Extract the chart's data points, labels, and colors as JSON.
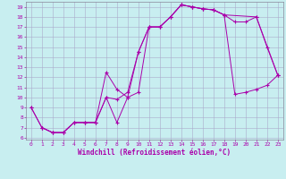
{
  "bg_color": "#c8eef0",
  "line_color": "#aa00aa",
  "grid_color": "#aaaacc",
  "xlabel": "Windchill (Refroidissement éolien,°C)",
  "xlim": [
    -0.5,
    23.5
  ],
  "ylim": [
    5.8,
    19.5
  ],
  "xticks": [
    0,
    1,
    2,
    3,
    4,
    5,
    6,
    7,
    8,
    9,
    10,
    11,
    12,
    13,
    14,
    15,
    16,
    17,
    18,
    19,
    20,
    21,
    22,
    23
  ],
  "yticks": [
    6,
    7,
    8,
    9,
    10,
    11,
    12,
    13,
    14,
    15,
    16,
    17,
    18,
    19
  ],
  "line1_x": [
    0,
    1,
    2,
    3,
    4,
    5,
    6,
    7,
    8,
    9,
    10,
    11,
    12,
    13,
    14,
    15,
    16,
    17,
    18,
    19,
    20,
    21,
    22,
    23
  ],
  "line1_y": [
    9,
    7,
    6.5,
    6.5,
    7.5,
    7.5,
    7.5,
    10,
    9.8,
    10.5,
    14.5,
    17,
    17,
    18,
    19.2,
    19,
    18.8,
    18.7,
    18.2,
    10.3,
    10.5,
    10.8,
    11.2,
    12.2
  ],
  "line2_x": [
    0,
    1,
    2,
    3,
    4,
    5,
    6,
    7,
    8,
    9,
    10,
    11,
    12,
    13,
    14,
    15,
    16,
    17,
    18,
    21,
    23
  ],
  "line2_y": [
    9,
    7,
    6.5,
    6.5,
    7.5,
    7.5,
    7.5,
    12.5,
    10.8,
    10,
    14.5,
    17,
    17,
    18,
    19.2,
    19,
    18.8,
    18.7,
    18.2,
    18.0,
    12.2
  ],
  "line3_x": [
    1,
    2,
    3,
    4,
    5,
    6,
    7,
    8,
    9,
    10,
    11,
    12,
    13,
    14,
    15,
    16,
    17,
    18,
    19,
    20,
    21,
    22,
    23
  ],
  "line3_y": [
    7,
    6.5,
    6.5,
    7.5,
    7.5,
    7.5,
    10,
    7.5,
    10,
    10.5,
    17,
    17,
    18,
    19.2,
    19,
    18.8,
    18.7,
    18.2,
    17.5,
    17.5,
    18.0,
    15.0,
    12.2
  ]
}
